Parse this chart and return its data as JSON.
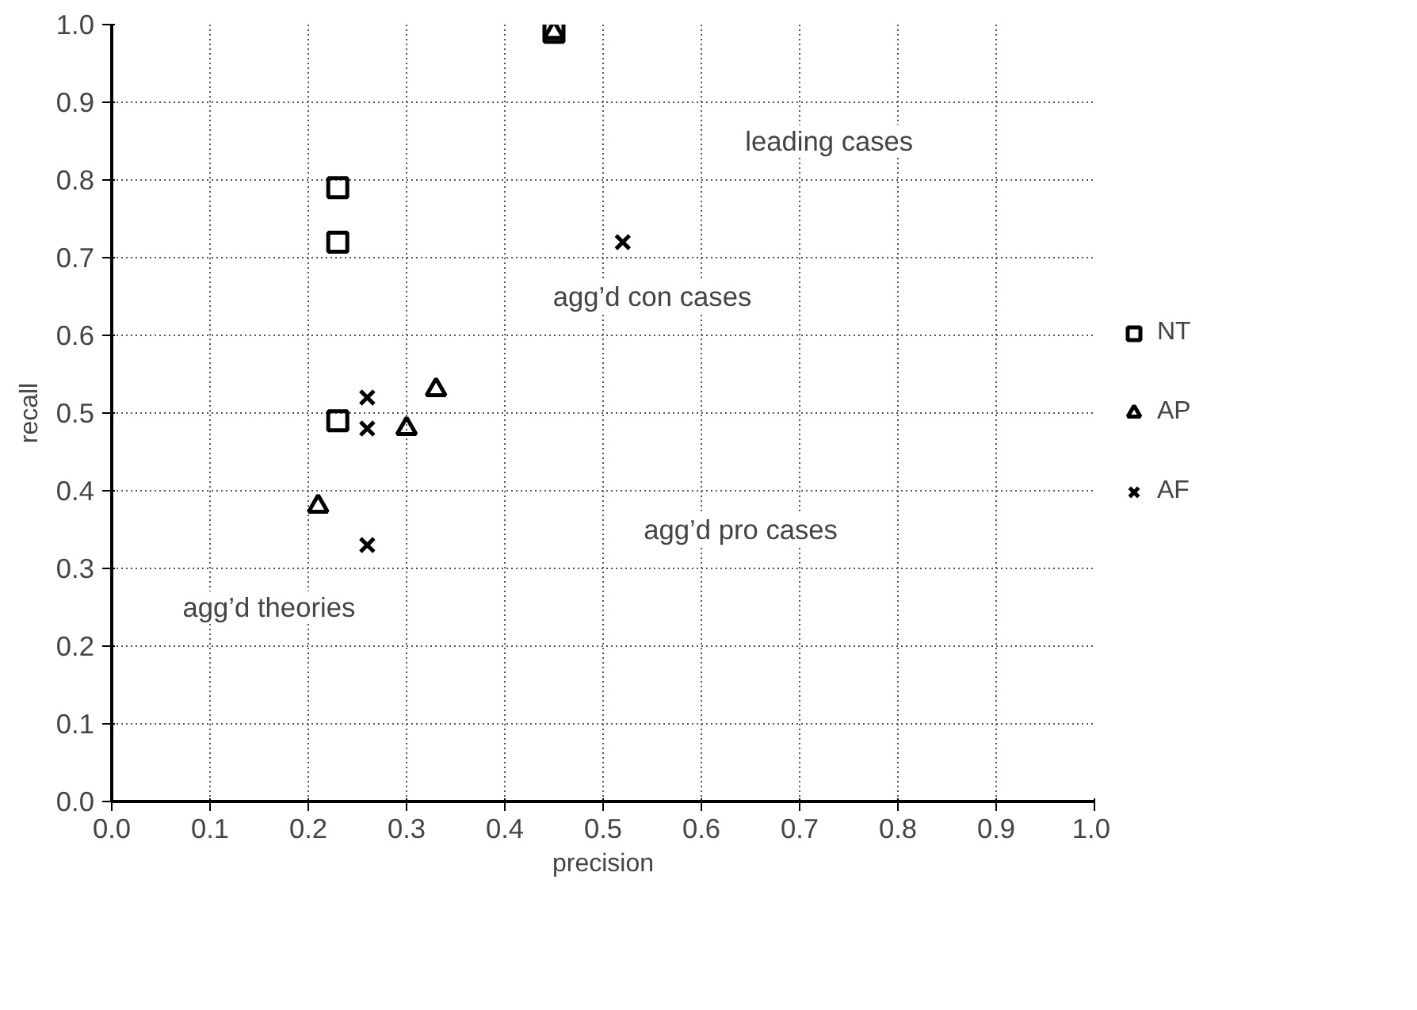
{
  "chart_data": {
    "type": "scatter",
    "xlabel": "precision",
    "ylabel": "recall",
    "xlim": [
      0,
      1
    ],
    "ylim": [
      0,
      1
    ],
    "xticks": [
      {
        "value": 0,
        "label": "0.0"
      },
      0.1,
      0.2,
      0.3,
      0.4,
      0.5,
      0.6,
      0.7,
      0.8,
      0.9,
      {
        "value": 1,
        "label": "1.0"
      }
    ],
    "yticks": [
      {
        "value": 0,
        "label": "0.0"
      },
      0.1,
      0.2,
      0.3,
      0.4,
      0.5,
      0.6,
      0.7,
      0.8,
      0.9,
      {
        "value": 1,
        "label": "1.0"
      }
    ],
    "grid": true,
    "legend": "right",
    "series": [
      {
        "name": "NT",
        "color": "#000000",
        "marker": "square",
        "x": [
          0.45,
          0.23,
          0.23,
          0.23
        ],
        "values": [
          0.99,
          0.79,
          0.72,
          0.49
        ]
      },
      {
        "name": "AP",
        "color": "#000000",
        "marker": "triangle",
        "x": [
          0.45,
          0.33,
          0.3,
          0.21
        ],
        "values": [
          0.99,
          0.53,
          0.48,
          0.38
        ]
      },
      {
        "name": "AF",
        "color": "#000000",
        "marker": "cross",
        "x": [
          0.52,
          0.26,
          0.26,
          0.26
        ],
        "values": [
          0.72,
          0.52,
          0.48,
          0.33
        ]
      }
    ],
    "annotations": [
      "leading cases",
      "agg’d con cases",
      "agg’d pro cases",
      "agg’d theories"
    ]
  }
}
